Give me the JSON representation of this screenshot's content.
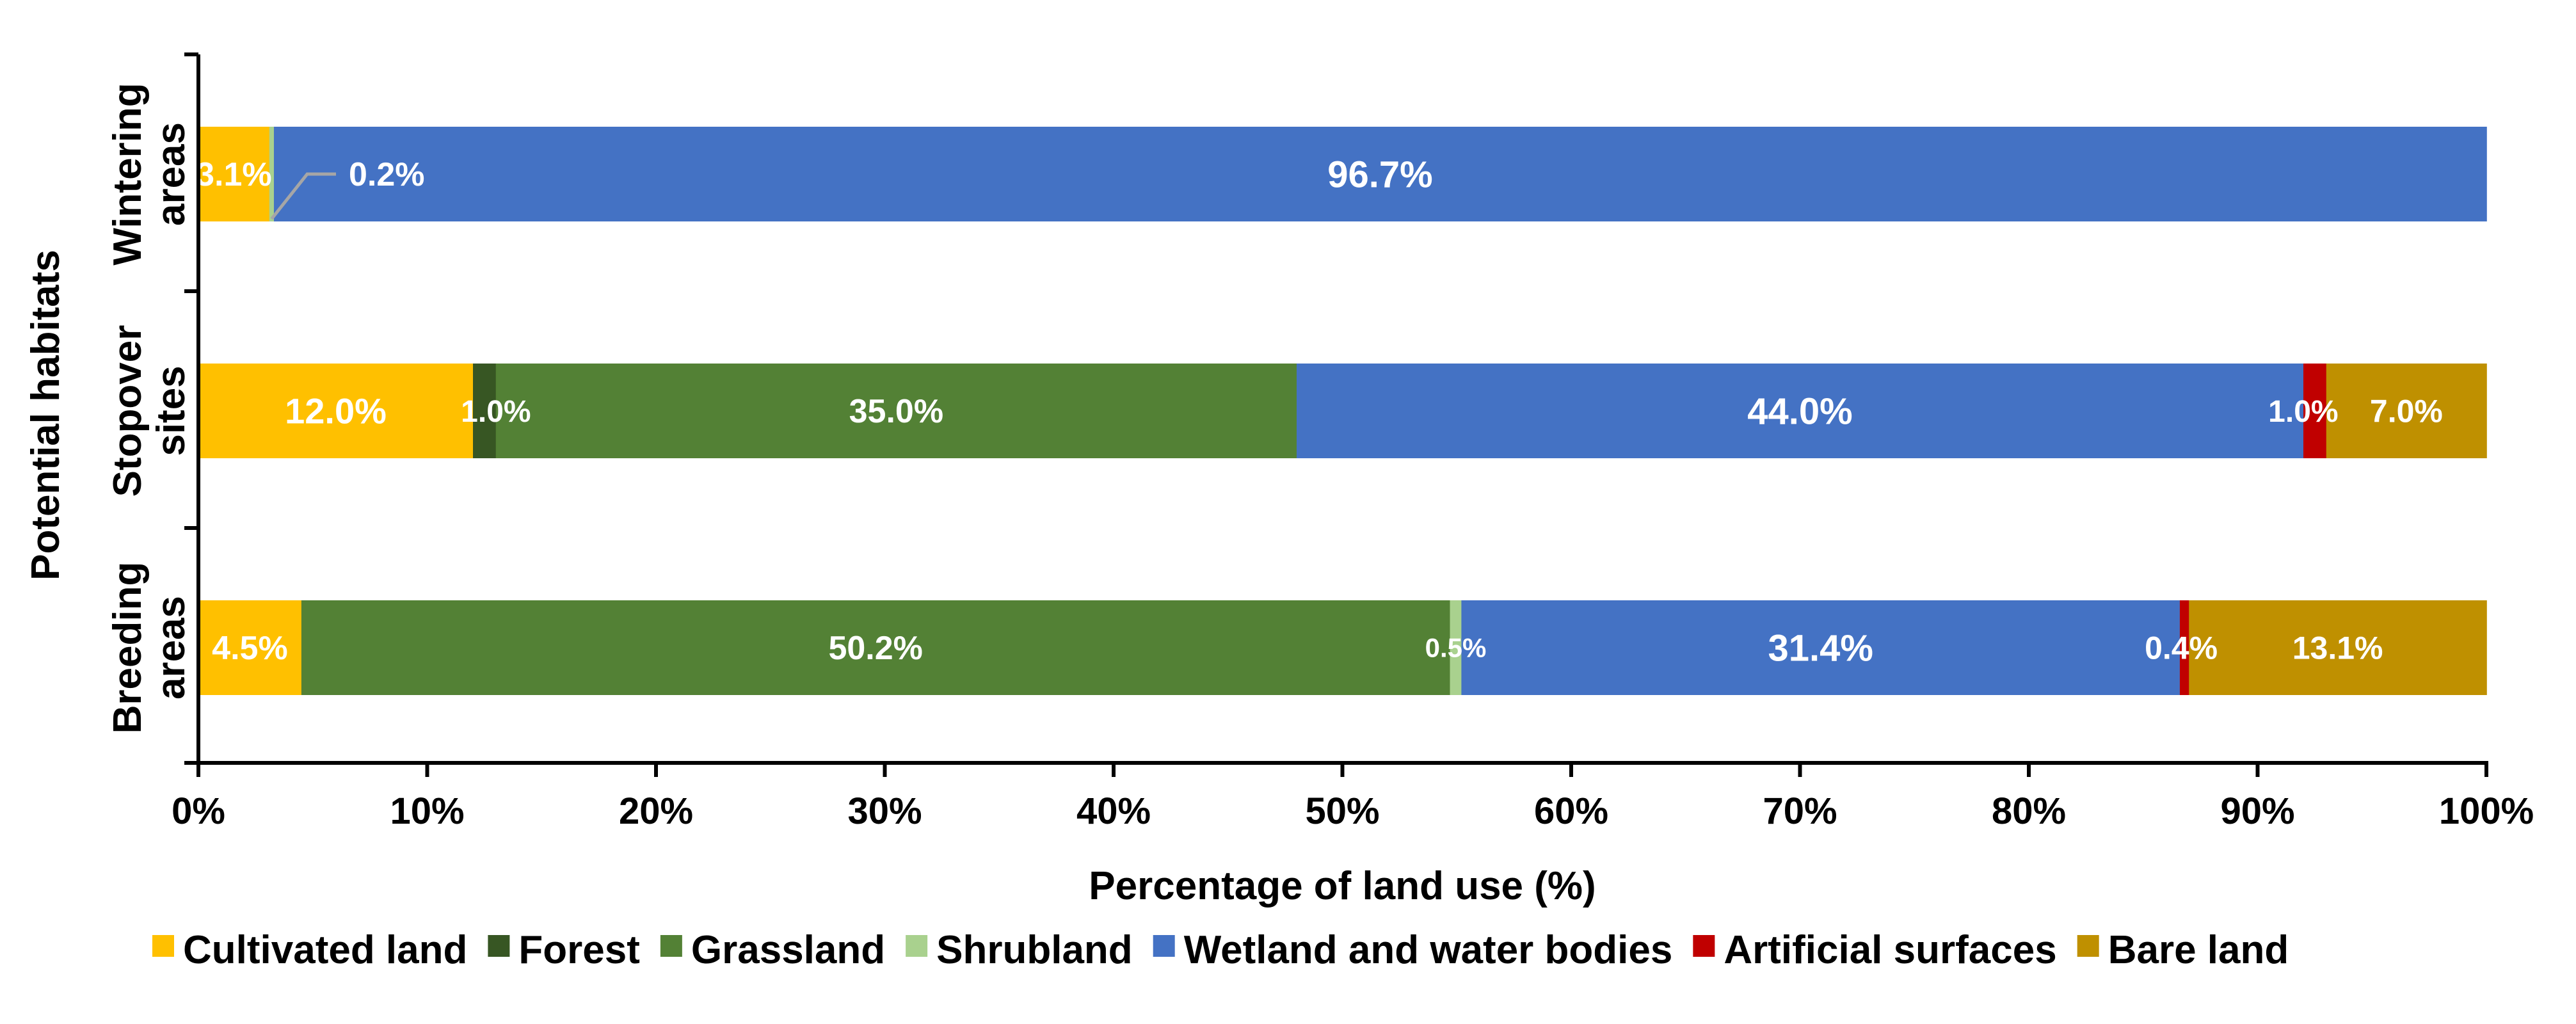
{
  "chart_data": {
    "type": "bar",
    "orientation": "horizontal",
    "stacked": true,
    "title": "",
    "xlabel": "Percentage of land use (%)",
    "ylabel": "Potential habitats",
    "xlim": [
      0,
      100
    ],
    "xticks": [
      0,
      10,
      20,
      30,
      40,
      50,
      60,
      70,
      80,
      90,
      100
    ],
    "xtick_labels": [
      "0%",
      "10%",
      "20%",
      "30%",
      "40%",
      "50%",
      "60%",
      "70%",
      "80%",
      "90%",
      "100%"
    ],
    "categories": [
      {
        "lines": [
          "Wintering",
          "areas"
        ]
      },
      {
        "lines": [
          "Stopover",
          "sites"
        ]
      },
      {
        "lines": [
          "Breeding",
          "areas"
        ]
      }
    ],
    "series": [
      {
        "name": "Cultivated land",
        "color": "#FFC000",
        "values": [
          3.1,
          12.0,
          4.5
        ],
        "labels": [
          "3.1%",
          "12.0%",
          "4.5%"
        ]
      },
      {
        "name": "Forest",
        "color": "#375623",
        "values": [
          0,
          1.0,
          0
        ],
        "labels": [
          "",
          "1.0%",
          ""
        ]
      },
      {
        "name": "Grassland",
        "color": "#538135",
        "values": [
          0,
          35.0,
          50.2
        ],
        "labels": [
          "",
          "35.0%",
          "50.2%"
        ]
      },
      {
        "name": "Shrubland",
        "color": "#A9D18E",
        "values": [
          0.2,
          0,
          0.5
        ],
        "labels": [
          "0.2%",
          "",
          "0.5%"
        ]
      },
      {
        "name": "Wetland and water bodies",
        "color": "#4472C4",
        "values": [
          96.7,
          44.0,
          31.4
        ],
        "labels": [
          "96.7%",
          "44.0%",
          "31.4%"
        ]
      },
      {
        "name": "Artificial surfaces",
        "color": "#C00000",
        "values": [
          0,
          1.0,
          0.4
        ],
        "labels": [
          "",
          "1.0%",
          "0.4%"
        ]
      },
      {
        "name": "Bare land",
        "color": "#BF9000",
        "values": [
          0,
          7.0,
          13.1
        ],
        "labels": [
          "",
          "7.0%",
          "13.1%"
        ]
      }
    ],
    "grid": false,
    "legend_position": "bottom"
  }
}
